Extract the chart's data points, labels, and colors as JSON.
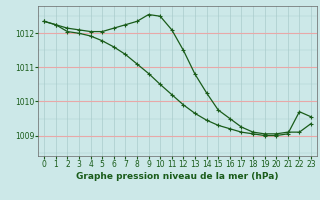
{
  "title": "Graphe pression niveau de la mer (hPa)",
  "bg_color": "#cce8e8",
  "line_color": "#1a5c1a",
  "grid_color_vert": "#aacccc",
  "grid_color_horiz": "#e8a8a8",
  "xlim": [
    -0.5,
    23.5
  ],
  "ylim": [
    1008.4,
    1012.8
  ],
  "yticks": [
    1009,
    1010,
    1011,
    1012
  ],
  "xticks": [
    0,
    1,
    2,
    3,
    4,
    5,
    6,
    7,
    8,
    9,
    10,
    11,
    12,
    13,
    14,
    15,
    16,
    17,
    18,
    19,
    20,
    21,
    22,
    23
  ],
  "line1_x": [
    0,
    1,
    2,
    3,
    4,
    5,
    6,
    7,
    8,
    9,
    10,
    11,
    12,
    13,
    14,
    15,
    16,
    17,
    18,
    19,
    20,
    21,
    22,
    23
  ],
  "line1_y": [
    1012.35,
    1012.25,
    1012.15,
    1012.1,
    1012.05,
    1012.05,
    1012.15,
    1012.25,
    1012.35,
    1012.55,
    1012.5,
    1012.1,
    1011.5,
    1010.8,
    1010.25,
    1009.75,
    1009.5,
    1009.25,
    1009.1,
    1009.05,
    1009.05,
    1009.1,
    1009.1,
    1009.35
  ],
  "line2_x": [
    0,
    1,
    2,
    3,
    4,
    5,
    6,
    7,
    8,
    9,
    10,
    11,
    12,
    13,
    14,
    15,
    16,
    17,
    18,
    19,
    20,
    21,
    22,
    23
  ],
  "line2_y": [
    1012.35,
    1012.25,
    1012.05,
    1012.0,
    1011.92,
    1011.78,
    1011.6,
    1011.38,
    1011.1,
    1010.82,
    1010.5,
    1010.2,
    1009.9,
    1009.65,
    1009.45,
    1009.3,
    1009.2,
    1009.1,
    1009.05,
    1009.0,
    1009.0,
    1009.05,
    1009.7,
    1009.55
  ],
  "marker": "+",
  "markersize": 3.5,
  "linewidth": 0.9,
  "title_fontsize": 6.5,
  "tick_fontsize": 5.5
}
